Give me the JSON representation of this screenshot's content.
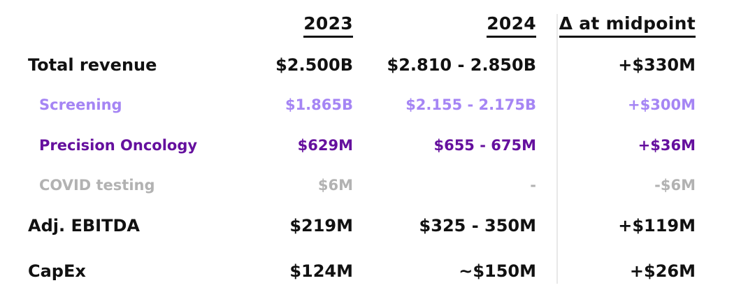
{
  "table": {
    "headers": {
      "year_left": "2023",
      "year_right": "2024",
      "delta": "Δ at midpoint"
    },
    "rows": [
      {
        "label": "Total revenue",
        "v2023": "$2.500B",
        "v2024": "$2.810 - 2.850B",
        "delta": "+$330M"
      },
      {
        "label": "Screening",
        "v2023": "$1.865B",
        "v2024": "$2.155 - 2.175B",
        "delta": "+$300M"
      },
      {
        "label": "Precision Oncology",
        "v2023": "$629M",
        "v2024": "$655 - 675M",
        "delta": "+$36M"
      },
      {
        "label": "COVID testing",
        "v2023": "$6M",
        "v2024": "-",
        "delta": "-$6M"
      },
      {
        "label": "Adj. EBITDA",
        "v2023": "$219M",
        "v2024": "$325 - 350M",
        "delta": "+$119M"
      },
      {
        "label": "CapEx",
        "v2023": "$124M",
        "v2024": "~$150M",
        "delta": "+$26M"
      }
    ]
  },
  "colors": {
    "text": "#111111",
    "screening_purple": "#a585f4",
    "precision_oncology_purple": "#65109e",
    "covid_gray": "#b2b2b2",
    "divider_gray": "#e8e8e8"
  },
  "chart_data": {
    "type": "table",
    "columns": [
      "",
      "2023",
      "2024",
      "Δ at midpoint"
    ],
    "rows": [
      [
        "Total revenue",
        "$2.500B",
        "$2.810 - 2.850B",
        "+$330M"
      ],
      [
        "Screening",
        "$1.865B",
        "$2.155 - 2.175B",
        "+$300M"
      ],
      [
        "Precision Oncology",
        "$629M",
        "$655 - 675M",
        "+$36M"
      ],
      [
        "COVID testing",
        "$6M",
        "-",
        "-$6M"
      ],
      [
        "Adj. EBITDA",
        "$219M",
        "$325 - 350M",
        "+$119M"
      ],
      [
        "CapEx",
        "$124M",
        "~$150M",
        "+$26M"
      ]
    ]
  }
}
